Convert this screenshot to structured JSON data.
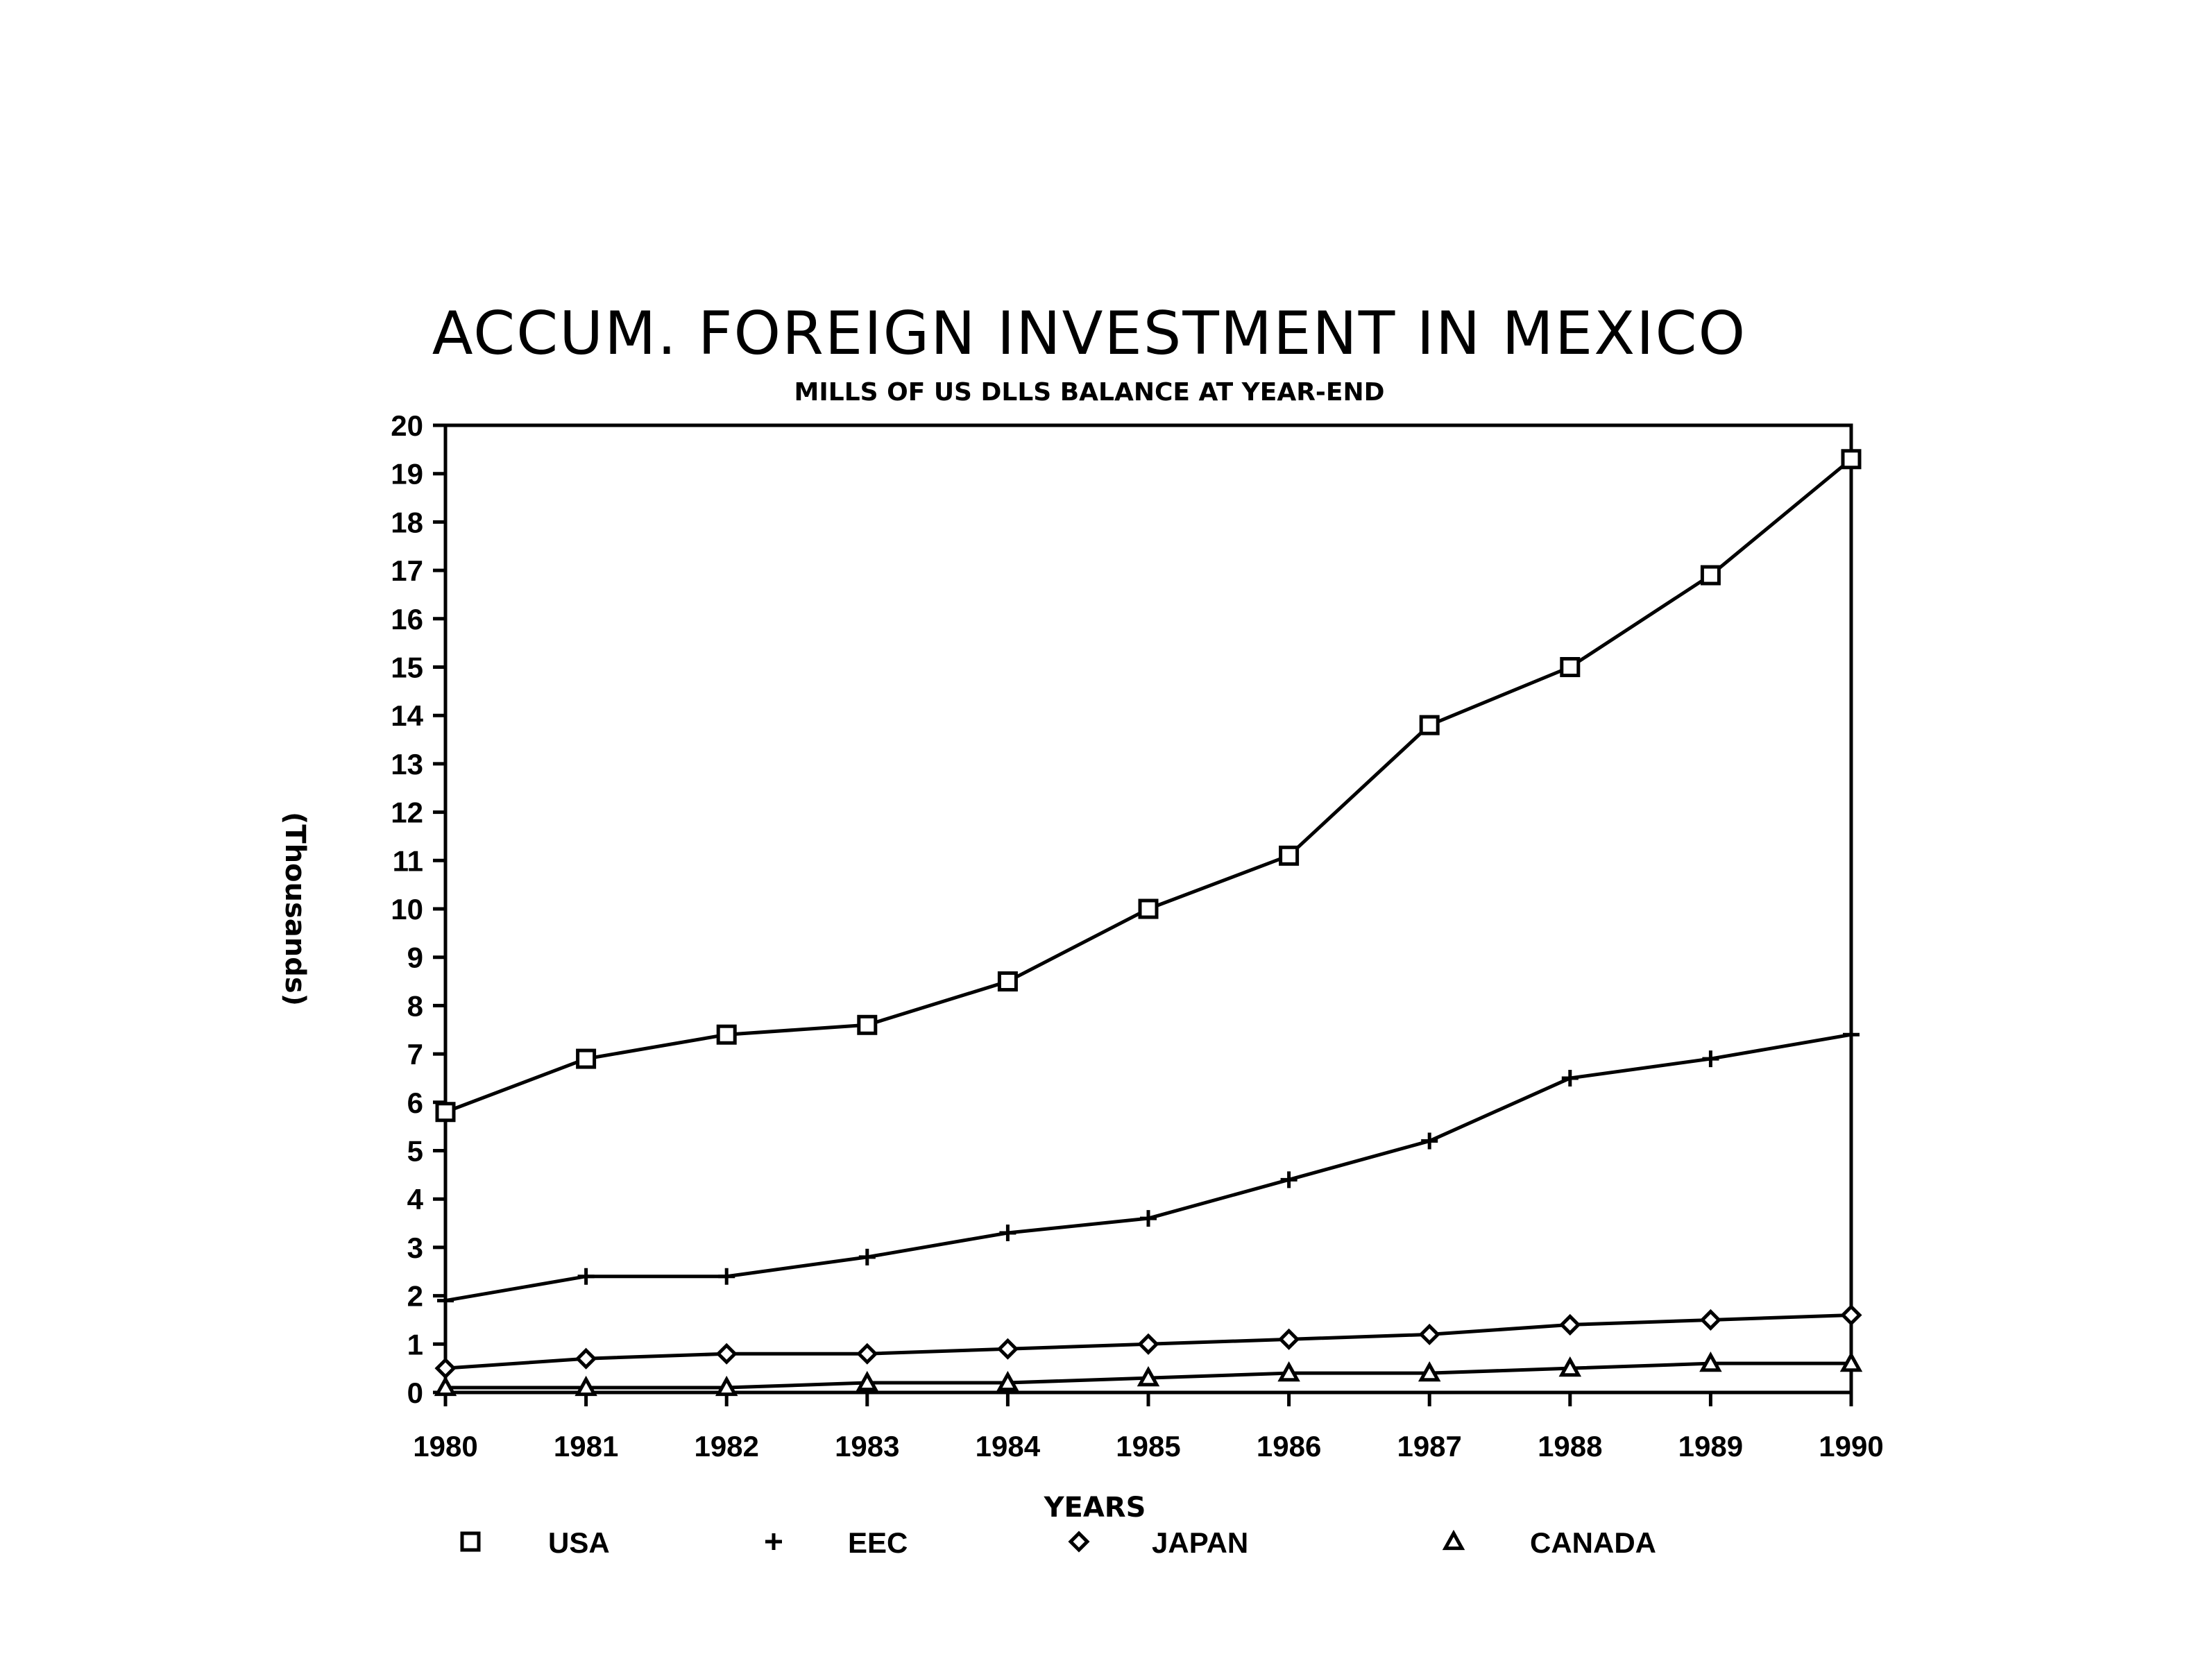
{
  "chart_data": {
    "type": "line",
    "title": "ACCUM. FOREIGN INVESTMENT IN MEXICO",
    "subtitle": "MILLS OF US DLLS BALANCE AT YEAR-END",
    "xlabel": "YEARS",
    "ylabel": "(Thousands)",
    "x": [
      "1980",
      "1981",
      "1982",
      "1983",
      "1984",
      "1985",
      "1986",
      "1987",
      "1988",
      "1989",
      "1990"
    ],
    "ylim": [
      0,
      20
    ],
    "yticks": [
      "0",
      "1",
      "2",
      "3",
      "4",
      "5",
      "6",
      "7",
      "8",
      "9",
      "10",
      "11",
      "12",
      "13",
      "14",
      "15",
      "16",
      "17",
      "18",
      "19",
      "20"
    ],
    "grid": false,
    "legend_position": "bottom",
    "series": [
      {
        "name": "USA",
        "marker": "square",
        "values": [
          5.8,
          6.9,
          7.4,
          7.6,
          8.5,
          10.0,
          11.1,
          13.8,
          15.0,
          16.9,
          19.3
        ]
      },
      {
        "name": "EEC",
        "marker": "plus",
        "values": [
          1.9,
          2.4,
          2.4,
          2.8,
          3.3,
          3.6,
          4.4,
          5.2,
          6.5,
          6.9,
          7.4
        ]
      },
      {
        "name": "JAPAN",
        "marker": "diamond",
        "values": [
          0.5,
          0.7,
          0.8,
          0.8,
          0.9,
          1.0,
          1.1,
          1.2,
          1.4,
          1.5,
          1.6
        ]
      },
      {
        "name": "CANADA",
        "marker": "triangle",
        "values": [
          0.1,
          0.1,
          0.1,
          0.2,
          0.2,
          0.3,
          0.4,
          0.4,
          0.5,
          0.6,
          0.6
        ]
      }
    ]
  }
}
